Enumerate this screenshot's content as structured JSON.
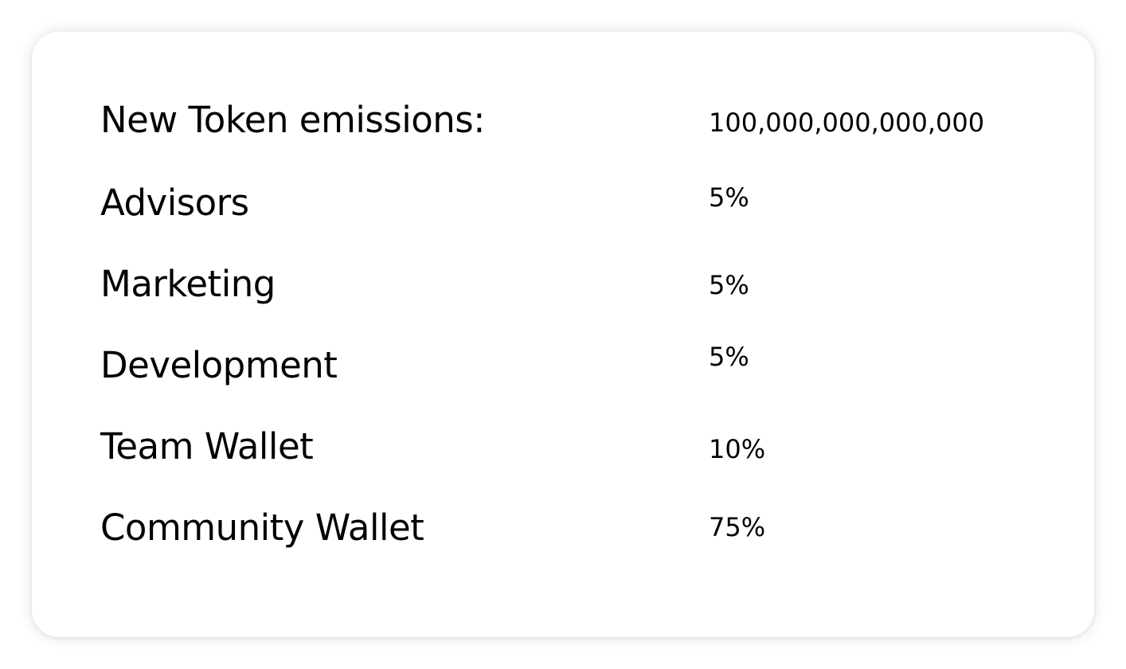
{
  "tokenomics": {
    "emissions": {
      "label": "New Token emissions:",
      "value": "100,000,000,000,000"
    },
    "rows": [
      {
        "label": "Advisors",
        "value": "5%"
      },
      {
        "label": "Marketing",
        "value": "5%"
      },
      {
        "label": "Development",
        "value": "5%"
      },
      {
        "label": "Team Wallet",
        "value": "10%"
      },
      {
        "label": "Community Wallet",
        "value": "75%"
      }
    ]
  },
  "colors": {
    "background": "#ffffff",
    "text": "#000000"
  }
}
